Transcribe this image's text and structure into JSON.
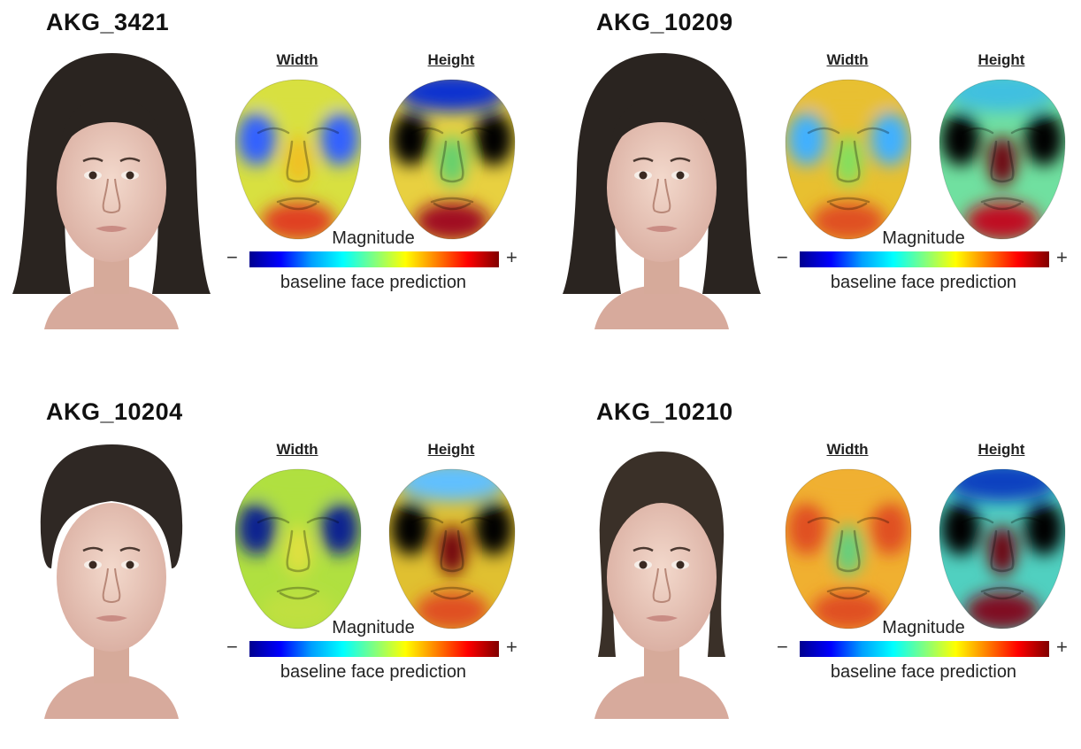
{
  "colorbar": {
    "label": "Magnitude",
    "minus": "−",
    "plus": "+",
    "caption": "baseline face prediction",
    "colors": [
      "#00008f",
      "#0000ff",
      "#00a0ff",
      "#00ffff",
      "#80ff80",
      "#ffff00",
      "#ff8000",
      "#ff0000",
      "#800000"
    ]
  },
  "panels": [
    {
      "id": "AKG_3421",
      "title": "AKG_3421",
      "width_label": "Width",
      "height_label": "Height",
      "hair": "long-dark",
      "width_map": {
        "base": "#d8e040",
        "cheeks": "#3060ff",
        "nose": "#f0c020",
        "chin": "#e04020"
      },
      "height_map": {
        "base": "#e8d040",
        "forehead": "#1030d0",
        "nose": "#60d070",
        "chin": "#a01020"
      }
    },
    {
      "id": "AKG_10209",
      "title": "AKG_10209",
      "width_label": "Width",
      "height_label": "Height",
      "hair": "long-dark",
      "width_map": {
        "base": "#e8c030",
        "cheeks": "#40b0ff",
        "nose": "#80e060",
        "chin": "#e05020"
      },
      "height_map": {
        "base": "#70e0a0",
        "forehead": "#40c0e0",
        "nose": "#700010",
        "chin": "#c01020"
      }
    },
    {
      "id": "AKG_10204",
      "title": "AKG_10204",
      "width_label": "Width",
      "height_label": "Height",
      "hair": "short-tied",
      "width_map": {
        "base": "#b0e040",
        "cheeks": "#102090",
        "nose": "#e0e040",
        "chin": "#c0e040"
      },
      "height_map": {
        "base": "#e0c030",
        "forehead": "#60c0ff",
        "nose": "#700010",
        "chin": "#e05020"
      }
    },
    {
      "id": "AKG_10210",
      "title": "AKG_10210",
      "width_label": "Width",
      "height_label": "Height",
      "hair": "tied-back",
      "width_map": {
        "base": "#f0b030",
        "cheeks": "#e05020",
        "nose": "#60d080",
        "chin": "#e05020"
      },
      "height_map": {
        "base": "#50d0c0",
        "forehead": "#1040c0",
        "nose": "#700010",
        "chin": "#801020"
      }
    }
  ]
}
